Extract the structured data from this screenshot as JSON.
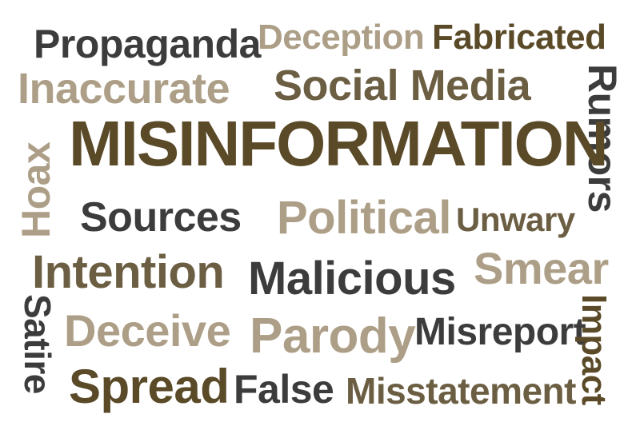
{
  "words": {
    "propaganda": "Propaganda",
    "deception": "Deception",
    "fabricated": "Fabricated",
    "inaccurate": "Inaccurate",
    "social_media": "Social Media",
    "rumors": "Rumors",
    "misinformation": "MISINFORMATION",
    "hoax": "Hoax",
    "sources": "Sources",
    "political": "Political",
    "unwary": "Unwary",
    "intention": "Intention",
    "malicious": "Malicious",
    "smear": "Smear",
    "satire": "Satire",
    "deceive": "Deceive",
    "parody": "Parody",
    "misreport": "Misreport",
    "impact": "Impact",
    "spread": "Spread",
    "false": "False",
    "misstatement": "Misstatement"
  },
  "colors": {
    "dark_gray": "#3c3c3c",
    "tan": "#ad9f87",
    "olive": "#6b5e42",
    "brown": "#5a4a28"
  }
}
